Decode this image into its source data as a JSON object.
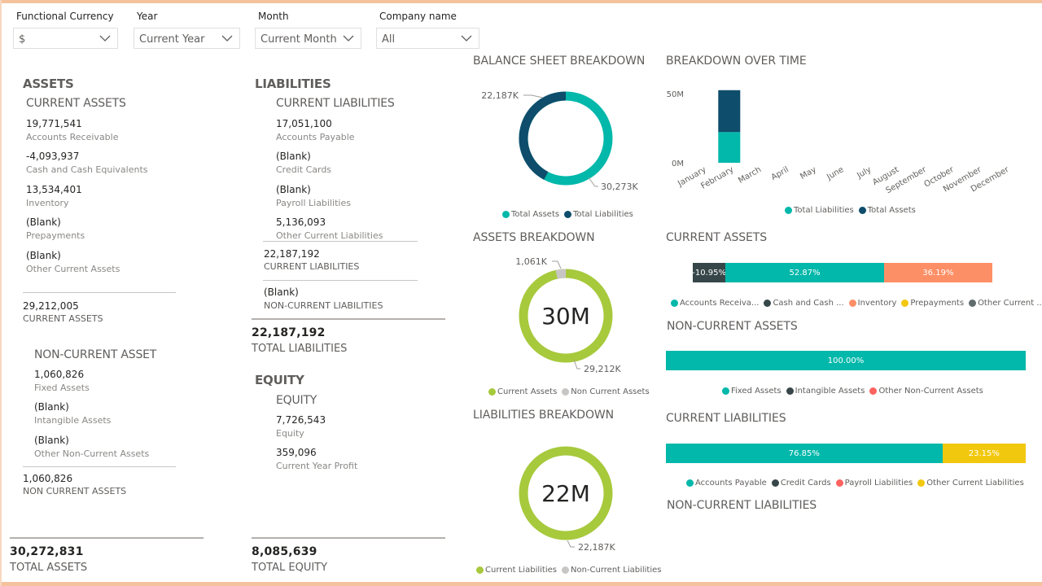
{
  "filters": {
    "currency": {
      "label": "Functional Currency",
      "value": "$"
    },
    "year": {
      "label": "Year",
      "value": "Current Year"
    },
    "month": {
      "label": "Month",
      "value": "Current Month"
    },
    "company": {
      "label": "Company name",
      "value": "All"
    }
  },
  "assets": {
    "title": "ASSETS",
    "current": {
      "title": "CURRENT ASSETS",
      "items": [
        {
          "value": "19,771,541",
          "label": "Accounts Receivable"
        },
        {
          "value": "-4,093,937",
          "label": "Cash and Cash Equivalents"
        },
        {
          "value": "13,534,401",
          "label": "Inventory"
        },
        {
          "value": "(Blank)",
          "label": "Prepayments"
        },
        {
          "value": "(Blank)",
          "label": "Other Current Assets"
        }
      ],
      "subtotal_value": "29,212,005",
      "subtotal_label": "CURRENT ASSETS"
    },
    "non_current": {
      "title": "NON-CURRENT ASSET",
      "items": [
        {
          "value": "1,060,826",
          "label": "Fixed Assets"
        },
        {
          "value": "(Blank)",
          "label": "Intangible Assets"
        },
        {
          "value": "(Blank)",
          "label": "Other Non-Current Assets"
        }
      ],
      "subtotal_value": "1,060,826",
      "subtotal_label": "NON CURRENT ASSETS"
    },
    "total_value": "30,272,831",
    "total_label": "TOTAL ASSETS"
  },
  "liabilities": {
    "title": "LIABILITIES",
    "current": {
      "title": "CURRENT LIABILITIES",
      "items": [
        {
          "value": "17,051,100",
          "label": "Accounts Payable"
        },
        {
          "value": "(Blank)",
          "label": "Credit Cards"
        },
        {
          "value": "(Blank)",
          "label": "Payroll Liabilities"
        },
        {
          "value": "5,136,093",
          "label": "Other Current Liabilities"
        }
      ],
      "subtotal_value": "22,187,192",
      "subtotal_label": "CURRENT LIABILITIES"
    },
    "non_current": {
      "value": "(Blank)",
      "label": "NON-CURRENT LIABILITIES"
    },
    "total_value": "22,187,192",
    "total_label": "TOTAL LIABILITIES"
  },
  "equity": {
    "title": "EQUITY",
    "group_title": "EQUITY",
    "items": [
      {
        "value": "7,726,543",
        "label": "Equity"
      },
      {
        "value": "359,096",
        "label": "Current Year Profit"
      }
    ],
    "total_value": "8,085,639",
    "total_label": "TOTAL EQUITY"
  },
  "colors": {
    "teal": "#01b8aa",
    "navy": "#0e4d6b",
    "dark": "#374649",
    "orange": "#fd8f66",
    "yellow": "#f2c80f",
    "red": "#fd625e",
    "gray": "#5f6b6d",
    "green": "#a7c93c",
    "lightgray": "#c8c6c4",
    "frame": "#f4c39d"
  },
  "balance_sheet_breakdown": {
    "title": "BALANCE SHEET BREAKDOWN",
    "label_assets": "30,273K",
    "label_liabilities": "22,187K",
    "legend": [
      "Total Assets",
      "Total Liabilities"
    ],
    "chart_data": {
      "type": "pie",
      "categories": [
        "Total Assets",
        "Total Liabilities"
      ],
      "values": [
        30272831,
        22187192
      ]
    }
  },
  "assets_breakdown": {
    "title": "ASSETS BREAKDOWN",
    "center": "30M",
    "label_current": "29,212K",
    "label_noncurrent": "1,061K",
    "legend": [
      "Current Assets",
      "Non Current Assets"
    ],
    "chart_data": {
      "type": "pie",
      "categories": [
        "Current Assets",
        "Non Current Assets"
      ],
      "values": [
        29212005,
        1060826
      ]
    }
  },
  "liabilities_breakdown": {
    "title": "LIABILITIES BREAKDOWN",
    "center": "22M",
    "label_current": "22,187K",
    "legend": [
      "Current Liabilities",
      "Non-Current Liabilities"
    ],
    "chart_data": {
      "type": "pie",
      "categories": [
        "Current Liabilities",
        "Non-Current Liabilities"
      ],
      "values": [
        22187192,
        0
      ]
    }
  },
  "breakdown_over_time": {
    "title": "BREAKDOWN OVER TIME",
    "y_ticks": [
      "50M",
      "0M"
    ],
    "legend": [
      "Total Liabilities",
      "Total Assets"
    ],
    "chart_data": {
      "type": "bar",
      "categories": [
        "January",
        "February",
        "March",
        "April",
        "May",
        "June",
        "July",
        "August",
        "September",
        "October",
        "November",
        "December"
      ],
      "series": [
        {
          "name": "Total Liabilities",
          "values": [
            0,
            22187192,
            0,
            0,
            0,
            0,
            0,
            0,
            0,
            0,
            0,
            0
          ]
        },
        {
          "name": "Total Assets",
          "values": [
            0,
            30272831,
            0,
            0,
            0,
            0,
            0,
            0,
            0,
            0,
            0,
            0
          ]
        }
      ],
      "ylim": [
        0,
        52460023
      ]
    }
  },
  "current_assets_chart": {
    "title": "CURRENT ASSETS",
    "segments": [
      {
        "label": "-10.95%",
        "value": 10.95,
        "color": "#374649"
      },
      {
        "label": "52.87%",
        "value": 52.87,
        "color": "#01b8aa"
      },
      {
        "label": "36.19%",
        "value": 36.19,
        "color": "#fd8f66"
      }
    ],
    "legend": [
      {
        "label": "Accounts Receiva...",
        "color": "#01b8aa"
      },
      {
        "label": "Cash and Cash ...",
        "color": "#374649"
      },
      {
        "label": "Inventory",
        "color": "#fd8f66"
      },
      {
        "label": "Prepayments",
        "color": "#f2c80f"
      },
      {
        "label": "Other Current ...",
        "color": "#5f6b6d"
      }
    ]
  },
  "non_current_assets_chart": {
    "title": "NON-CURRENT ASSETS",
    "segments": [
      {
        "label": "100.00%",
        "value": 100,
        "color": "#01b8aa"
      }
    ],
    "legend": [
      {
        "label": "Fixed Assets",
        "color": "#01b8aa"
      },
      {
        "label": "Intangible Assets",
        "color": "#374649"
      },
      {
        "label": "Other Non-Current Assets",
        "color": "#fd625e"
      }
    ]
  },
  "current_liabilities_chart": {
    "title": "CURRENT LIABILITIES",
    "segments": [
      {
        "label": "76.85%",
        "value": 76.85,
        "color": "#01b8aa"
      },
      {
        "label": "23.15%",
        "value": 23.15,
        "color": "#f2c80f"
      }
    ],
    "legend": [
      {
        "label": "Accounts Payable",
        "color": "#01b8aa"
      },
      {
        "label": "Credit Cards",
        "color": "#374649"
      },
      {
        "label": "Payroll Liabilities",
        "color": "#fd625e"
      },
      {
        "label": "Other Current Liabilities",
        "color": "#f2c80f"
      }
    ]
  },
  "non_current_liabilities_chart": {
    "title": "NON-CURRENT LIABILITIES"
  }
}
